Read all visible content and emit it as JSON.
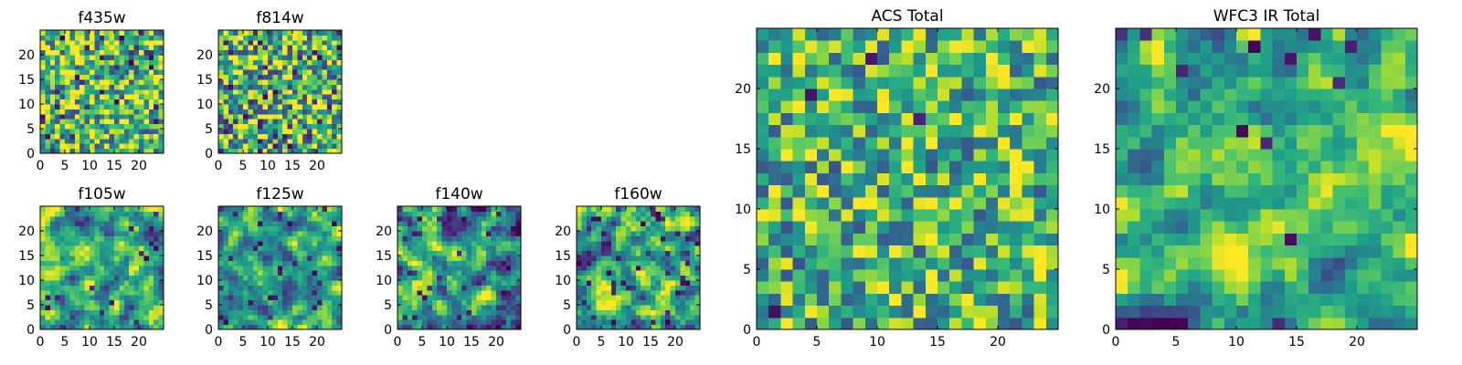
{
  "chart_data": [
    {
      "id": "f435w",
      "type": "heatmap",
      "title": "f435w",
      "grid_size": 25,
      "xlim": [
        0,
        25
      ],
      "ylim": [
        0,
        25
      ],
      "colormap": "viridis",
      "x_ticks": [
        0,
        5,
        10,
        15,
        20
      ],
      "y_ticks": [
        0,
        5,
        10,
        15,
        20
      ],
      "tick_labels_x": [
        "0",
        "5",
        "10",
        "15",
        "20"
      ],
      "tick_labels_y": [
        "0",
        "5",
        "10",
        "15",
        "20"
      ],
      "seed": 11,
      "smooth": 0,
      "bias": 0.68,
      "contrast": 0.55,
      "dark_prob": 0.05
    },
    {
      "id": "f814w",
      "type": "heatmap",
      "title": "f814w",
      "grid_size": 25,
      "xlim": [
        0,
        25
      ],
      "ylim": [
        0,
        25
      ],
      "colormap": "viridis",
      "x_ticks": [
        0,
        5,
        10,
        15,
        20
      ],
      "y_ticks": [
        0,
        5,
        10,
        15,
        20
      ],
      "tick_labels_x": [
        "0",
        "5",
        "10",
        "15",
        "20"
      ],
      "tick_labels_y": [
        "0",
        "5",
        "10",
        "15",
        "20"
      ],
      "seed": 23,
      "smooth": 0,
      "bias": 0.66,
      "contrast": 0.6,
      "dark_prob": 0.05
    },
    {
      "id": "f105w",
      "type": "heatmap",
      "title": "f105w",
      "grid_size": 25,
      "xlim": [
        0,
        25
      ],
      "ylim": [
        0,
        25
      ],
      "colormap": "viridis",
      "x_ticks": [
        0,
        5,
        10,
        15,
        20
      ],
      "y_ticks": [
        0,
        5,
        10,
        15,
        20
      ],
      "tick_labels_x": [
        "0",
        "5",
        "10",
        "15",
        "20"
      ],
      "tick_labels_y": [
        "0",
        "5",
        "10",
        "15",
        "20"
      ],
      "seed": 37,
      "smooth": 1,
      "bias": 0.62,
      "contrast": 0.65,
      "dark_prob": 0.03
    },
    {
      "id": "f125w",
      "type": "heatmap",
      "title": "f125w",
      "grid_size": 25,
      "xlim": [
        0,
        25
      ],
      "ylim": [
        0,
        25
      ],
      "colormap": "viridis",
      "x_ticks": [
        0,
        5,
        10,
        15,
        20
      ],
      "y_ticks": [
        0,
        5,
        10,
        15,
        20
      ],
      "tick_labels_x": [
        "0",
        "5",
        "10",
        "15",
        "20"
      ],
      "tick_labels_y": [
        "0",
        "5",
        "10",
        "15",
        "20"
      ],
      "seed": 41,
      "smooth": 1,
      "bias": 0.6,
      "contrast": 0.7,
      "dark_prob": 0.05
    },
    {
      "id": "f140w",
      "type": "heatmap",
      "title": "f140w",
      "grid_size": 25,
      "xlim": [
        0,
        25
      ],
      "ylim": [
        0,
        25
      ],
      "colormap": "viridis",
      "x_ticks": [
        0,
        5,
        10,
        15,
        20
      ],
      "y_ticks": [
        0,
        5,
        10,
        15,
        20
      ],
      "tick_labels_x": [
        "0",
        "5",
        "10",
        "15",
        "20"
      ],
      "tick_labels_y": [
        "0",
        "5",
        "10",
        "15",
        "20"
      ],
      "seed": 53,
      "smooth": 1,
      "bias": 0.52,
      "contrast": 0.8,
      "dark_prob": 0.06
    },
    {
      "id": "f160w",
      "type": "heatmap",
      "title": "f160w",
      "grid_size": 25,
      "xlim": [
        0,
        25
      ],
      "ylim": [
        0,
        25
      ],
      "colormap": "viridis",
      "x_ticks": [
        0,
        5,
        10,
        15,
        20
      ],
      "y_ticks": [
        0,
        5,
        10,
        15,
        20
      ],
      "tick_labels_x": [
        "0",
        "5",
        "10",
        "15",
        "20"
      ],
      "tick_labels_y": [
        "0",
        "5",
        "10",
        "15",
        "20"
      ],
      "seed": 67,
      "smooth": 1,
      "bias": 0.58,
      "contrast": 0.75,
      "dark_prob": 0.05
    },
    {
      "id": "acs_total",
      "type": "heatmap",
      "title": "ACS Total",
      "grid_size": 25,
      "xlim": [
        0,
        25
      ],
      "ylim": [
        0,
        25
      ],
      "colormap": "viridis",
      "x_ticks": [
        0,
        5,
        10,
        15,
        20
      ],
      "y_ticks": [
        0,
        5,
        10,
        15,
        20
      ],
      "tick_labels_x": [
        "0",
        "5",
        "10",
        "15",
        "20"
      ],
      "tick_labels_y": [
        "0",
        "5",
        "10",
        "15",
        "20"
      ],
      "seed": 79,
      "smooth": 0,
      "bias": 0.66,
      "contrast": 0.5,
      "dark_prob": 0.015
    },
    {
      "id": "wfc3_ir_total",
      "type": "heatmap",
      "title": "WFC3 IR Total",
      "grid_size": 25,
      "xlim": [
        0,
        25
      ],
      "ylim": [
        0,
        25
      ],
      "colormap": "viridis",
      "x_ticks": [
        0,
        5,
        10,
        15,
        20
      ],
      "y_ticks": [
        0,
        5,
        10,
        15,
        20
      ],
      "tick_labels_x": [
        "0",
        "5",
        "10",
        "15",
        "20"
      ],
      "tick_labels_y": [
        "0",
        "5",
        "10",
        "15",
        "20"
      ],
      "seed": 97,
      "smooth": 1,
      "bias": 0.55,
      "contrast": 0.7,
      "dark_prob": 0.018
    }
  ]
}
